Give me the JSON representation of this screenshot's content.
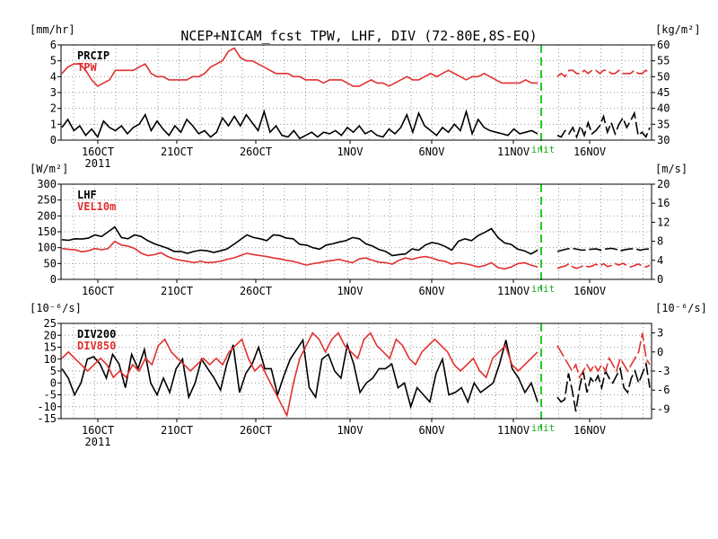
{
  "chart_data": [
    {
      "type": "line",
      "title": "NCEP+NICAM_fcst TPW, LHF, DIV (72-80E,8S-EQ)",
      "left_unit": "[mm/hr]",
      "right_unit": "[kg/m²]",
      "left_ylim": [
        0,
        6
      ],
      "left_ticks": [
        "0",
        "1",
        "2",
        "3",
        "4",
        "5",
        "6"
      ],
      "right_ylim": [
        30,
        60
      ],
      "right_ticks": [
        "30",
        "35",
        "40",
        "45",
        "50",
        "55",
        "60"
      ],
      "x_ticks": [
        "16OCT",
        "21OCT",
        "26OCT",
        "1NOV",
        "6NOV",
        "11NOV",
        "16NOV"
      ],
      "x_year": "2011",
      "init_label": "init",
      "series": [
        {
          "name": "PRCIP",
          "axis": "left",
          "color": "#000000",
          "values": [
            0.8,
            1.3,
            0.6,
            0.9,
            0.3,
            0.7,
            0.2,
            1.2,
            0.8,
            0.6,
            0.9,
            0.4,
            0.8,
            1.0,
            1.6,
            0.6,
            1.2,
            0.7,
            0.3,
            0.9,
            0.5,
            1.3,
            0.9,
            0.4,
            0.6,
            0.2,
            0.5,
            1.4,
            0.9,
            1.5,
            0.9,
            1.6,
            1.1,
            0.6,
            1.8,
            0.5,
            0.9,
            0.3,
            0.2,
            0.6,
            0.1,
            0.3,
            0.5,
            0.2,
            0.5,
            0.4,
            0.6,
            0.3,
            0.8,
            0.5,
            0.9,
            0.4,
            0.6,
            0.3,
            0.2,
            0.7,
            0.4,
            0.8,
            1.6,
            0.5,
            1.7,
            0.9,
            0.6,
            0.3,
            0.8,
            0.5,
            1.0,
            0.6,
            1.8,
            0.4,
            1.3,
            0.8,
            0.6,
            0.5,
            0.4,
            0.3,
            0.7,
            0.4,
            0.5,
            0.6,
            0.4
          ],
          "fcst": [
            0.3,
            0.2,
            0.6,
            0.4,
            0.8,
            0.2,
            0.9,
            0.3,
            1.1,
            0.4,
            0.6,
            0.9,
            1.5,
            0.5,
            1.1,
            0.4,
            1.0,
            1.4,
            0.8,
            1.2,
            1.7,
            0.3,
            0.5,
            0.2,
            0.8
          ]
        },
        {
          "name": "TPW",
          "axis": "right",
          "color": "#e03030",
          "values": [
            51,
            53,
            54,
            54,
            52,
            49,
            47,
            48,
            49,
            52,
            52,
            52,
            52,
            53,
            54,
            51,
            50,
            50,
            49,
            49,
            49,
            49,
            50,
            50,
            51,
            53,
            54,
            55,
            58,
            59,
            56,
            55,
            55,
            54,
            53,
            52,
            51,
            51,
            51,
            50,
            50,
            49,
            49,
            49,
            48,
            49,
            49,
            49,
            48,
            47,
            47,
            48,
            49,
            48,
            48,
            47,
            48,
            49,
            50,
            49,
            49,
            50,
            51,
            50,
            51,
            52,
            51,
            50,
            49,
            50,
            50,
            51,
            50,
            49,
            48,
            48,
            48,
            48,
            49,
            48,
            48
          ],
          "fcst": [
            50,
            51,
            50,
            52,
            52,
            51,
            51,
            52,
            51,
            52,
            52,
            51,
            52,
            52,
            51,
            51,
            52,
            51,
            51,
            51,
            52,
            51,
            51,
            52,
            51
          ]
        }
      ]
    },
    {
      "type": "line",
      "left_unit": "[W/m²]",
      "right_unit": "[m/s]",
      "left_ylim": [
        0,
        300
      ],
      "left_ticks": [
        "0",
        "50",
        "100",
        "150",
        "200",
        "250",
        "300"
      ],
      "right_ylim": [
        0,
        20
      ],
      "right_ticks": [
        "0",
        "4",
        "8",
        "12",
        "16",
        "20"
      ],
      "x_ticks": [
        "16OCT",
        "21OCT",
        "26OCT",
        "1NOV",
        "6NOV",
        "11NOV",
        "16NOV"
      ],
      "x_year": "",
      "init_label": "init",
      "series": [
        {
          "name": "LHF",
          "axis": "left",
          "color": "#000000",
          "values": [
            125,
            123,
            128,
            127,
            130,
            140,
            135,
            150,
            165,
            132,
            128,
            140,
            135,
            122,
            112,
            105,
            98,
            88,
            88,
            82,
            88,
            92,
            90,
            85,
            90,
            96,
            110,
            125,
            140,
            132,
            128,
            122,
            140,
            138,
            130,
            128,
            110,
            108,
            100,
            95,
            108,
            112,
            118,
            122,
            132,
            128,
            112,
            105,
            94,
            88,
            75,
            78,
            80,
            96,
            92,
            108,
            116,
            112,
            104,
            92,
            120,
            128,
            122,
            138,
            148,
            160,
            132,
            115,
            110,
            95,
            90,
            80,
            92
          ],
          "fcst": [
            88,
            92,
            96,
            98,
            95,
            92,
            93,
            95,
            96,
            92,
            96,
            98,
            95,
            90,
            94,
            96,
            97,
            92,
            95,
            96
          ]
        },
        {
          "name": "VEL10m",
          "axis": "right",
          "color": "#e03030",
          "values": [
            6.5,
            6.3,
            6.2,
            5.8,
            6.0,
            6.5,
            6.2,
            6.5,
            8.0,
            7.2,
            7.0,
            6.5,
            5.5,
            5.0,
            5.2,
            5.6,
            4.8,
            4.3,
            4.0,
            3.8,
            3.5,
            3.8,
            3.5,
            3.6,
            3.8,
            4.2,
            4.5,
            5.0,
            5.5,
            5.2,
            5.0,
            4.8,
            4.5,
            4.3,
            4.0,
            3.8,
            3.4,
            3.0,
            3.3,
            3.5,
            3.8,
            4.0,
            4.2,
            3.8,
            3.5,
            4.3,
            4.5,
            4.0,
            3.6,
            3.5,
            3.2,
            4.0,
            4.5,
            4.2,
            4.6,
            4.8,
            4.5,
            4.0,
            3.8,
            3.2,
            3.5,
            3.3,
            3.0,
            2.6,
            2.9,
            3.5,
            2.5,
            2.2,
            2.6,
            3.3,
            3.5,
            3.0,
            2.6
          ],
          "fcst": [
            2.3,
            2.6,
            2.8,
            3.3,
            2.6,
            2.3,
            2.6,
            3.0,
            2.6,
            2.8,
            3.2,
            2.8,
            3.3,
            2.7,
            2.9,
            3.3,
            3.0,
            3.4,
            2.9,
            2.6,
            2.9,
            3.2,
            2.9,
            2.6,
            3.0
          ]
        }
      ]
    },
    {
      "type": "line",
      "left_unit": "[10⁻⁶/s]",
      "right_unit": "[10⁻⁶/s]",
      "left_ylim": [
        -15,
        25
      ],
      "left_ticks": [
        "-15",
        "-10",
        "-5",
        "0",
        "5",
        "10",
        "15",
        "20",
        "25"
      ],
      "right_ylim": [
        -10.5,
        4.5
      ],
      "right_ticks": [
        "-9",
        "-6",
        "-3",
        "0",
        "3"
      ],
      "x_ticks": [
        "16OCT",
        "21OCT",
        "26OCT",
        "1NOV",
        "6NOV",
        "11NOV",
        "16NOV"
      ],
      "x_year": "2011",
      "init_label": "init",
      "series": [
        {
          "name": "DIV200",
          "axis": "left",
          "color": "#000000",
          "values": [
            6,
            2,
            -5,
            0,
            10,
            11,
            8,
            2,
            12,
            8,
            -2,
            12,
            6,
            14,
            0,
            -5,
            2,
            -4,
            6,
            10,
            -6,
            0,
            10,
            6,
            2,
            -3,
            8,
            16,
            -4,
            4,
            8,
            15,
            6,
            6,
            -5,
            3,
            10,
            14,
            18,
            -2,
            -6,
            10,
            12,
            5,
            2,
            16,
            8,
            -4,
            0,
            2,
            6,
            6,
            8,
            -2,
            0,
            -10,
            -2,
            -5,
            -8,
            4,
            10,
            -5,
            -4,
            -2,
            -8,
            0,
            -4,
            -2,
            0,
            8,
            18,
            6,
            2,
            -4,
            0,
            -8
          ],
          "fcst": [
            -6,
            -8,
            -7,
            4,
            -3,
            -12,
            -2,
            5,
            -4,
            2,
            0,
            3,
            -2,
            5,
            2,
            0,
            3,
            6,
            -2,
            -4,
            2,
            5,
            0,
            4,
            8,
            -2
          ]
        },
        {
          "name": "DIV850",
          "axis": "right",
          "color": "#e03030",
          "values": [
            -1,
            0,
            -1,
            -2,
            -3,
            -2,
            -1,
            -2,
            -4,
            -3,
            -4,
            -2,
            -3,
            -1,
            -2,
            1,
            2,
            0,
            -1,
            -2,
            -3,
            -2,
            -1,
            -2,
            -1,
            -2,
            0,
            1,
            2,
            -1,
            -3,
            -2,
            -4,
            -6,
            -8,
            -10,
            -5,
            -1,
            1,
            3,
            2,
            0,
            2,
            3,
            1,
            0,
            -1,
            2,
            3,
            1,
            0,
            -1,
            2,
            1,
            -1,
            -2,
            0,
            1,
            2,
            1,
            0,
            -2,
            -3,
            -2,
            -1,
            -3,
            -4,
            -1,
            0,
            1,
            -2,
            -3,
            -2,
            -1,
            0
          ],
          "fcst": [
            1,
            0,
            -1,
            -2,
            -3,
            -2,
            -4,
            -3,
            -2,
            -3,
            -2,
            -3,
            -2,
            -3,
            -1,
            -2,
            -3,
            -1,
            -2,
            -3,
            -2,
            -1,
            0,
            3,
            -1,
            -2
          ]
        }
      ]
    }
  ]
}
